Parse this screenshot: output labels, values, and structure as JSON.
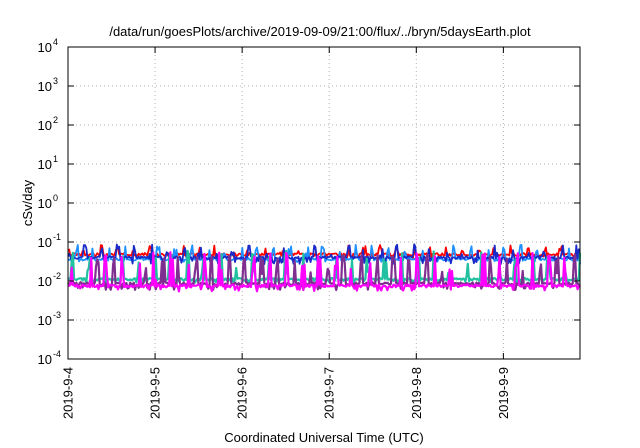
{
  "chart_data": {
    "type": "line",
    "title": "/data/run/goesPlots/archive/2019-09-09/21:00/flux/../bryn/5daysEarth.plot",
    "xlabel": "Coordinated Universal Time (UTC)",
    "ylabel": "cSv/day",
    "yscale": "log",
    "ylim": [
      0.0001,
      10000
    ],
    "xlim_days": [
      0,
      5.88
    ],
    "grid": true,
    "y_ticks": [
      {
        "base": "10",
        "exp": "4",
        "value": 10000
      },
      {
        "base": "10",
        "exp": "3",
        "value": 1000
      },
      {
        "base": "10",
        "exp": "2",
        "value": 100
      },
      {
        "base": "10",
        "exp": "1",
        "value": 10
      },
      {
        "base": "10",
        "exp": "0",
        "value": 1
      },
      {
        "base": "10",
        "exp": "-1",
        "value": 0.1
      },
      {
        "base": "10",
        "exp": "-2",
        "value": 0.01
      },
      {
        "base": "10",
        "exp": "-3",
        "value": 0.001
      },
      {
        "base": "10",
        "exp": "-4",
        "value": 0.0001
      }
    ],
    "x_ticks": [
      {
        "label": "2019-9-4",
        "day": 0
      },
      {
        "label": "2019-9-5",
        "day": 1
      },
      {
        "label": "2019-9-6",
        "day": 2
      },
      {
        "label": "2019-9-7",
        "day": 3
      },
      {
        "label": "2019-9-8",
        "day": 4
      },
      {
        "label": "2019-9-9",
        "day": 5
      }
    ],
    "series": [
      {
        "color": "#ff0000",
        "base": 0.048,
        "spike": 0.085,
        "dip": 0.042,
        "seed": 3
      },
      {
        "color": "#1e90ff",
        "base": 0.036,
        "spike": 0.085,
        "dip": 0.034,
        "seed": 7
      },
      {
        "color": "#1a2ac8",
        "base": 0.04,
        "spike": 0.09,
        "dip": 0.03,
        "seed": 11
      },
      {
        "color": "#20c0a0",
        "base": 0.011,
        "spike": 0.06,
        "dip": 0.009,
        "seed": 5
      },
      {
        "color": "#7f2f90",
        "base": 0.0085,
        "spike": 0.05,
        "dip": 0.0065,
        "seed": 9
      },
      {
        "color": "#ff00ff",
        "base": 0.0075,
        "spike": 0.055,
        "dip": 0.006,
        "seed": 13
      }
    ]
  }
}
